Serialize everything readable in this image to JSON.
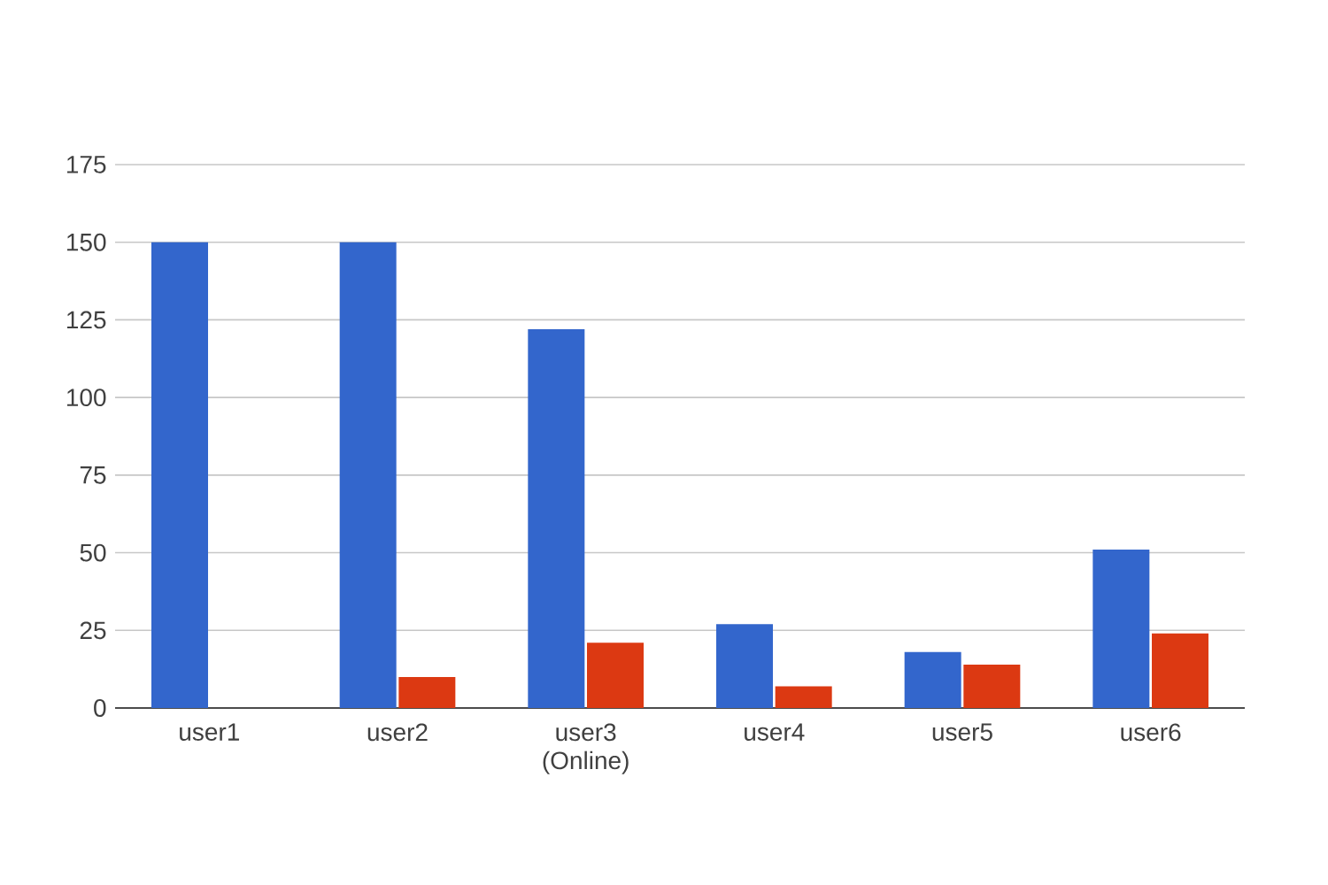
{
  "chart_data": {
    "type": "bar",
    "categories": [
      "user1",
      "user2",
      "user3 (Online)",
      "user4",
      "user5",
      "user6"
    ],
    "series": [
      {
        "color": "#3366cc",
        "values": [
          150,
          150,
          122,
          27,
          18,
          51
        ]
      },
      {
        "color": "#dc3912",
        "values": [
          0,
          10,
          21,
          7,
          14,
          24
        ]
      }
    ],
    "ylim": [
      0,
      175
    ],
    "yticks": [
      0,
      25,
      50,
      75,
      100,
      125,
      150,
      175
    ],
    "grid": "y"
  }
}
